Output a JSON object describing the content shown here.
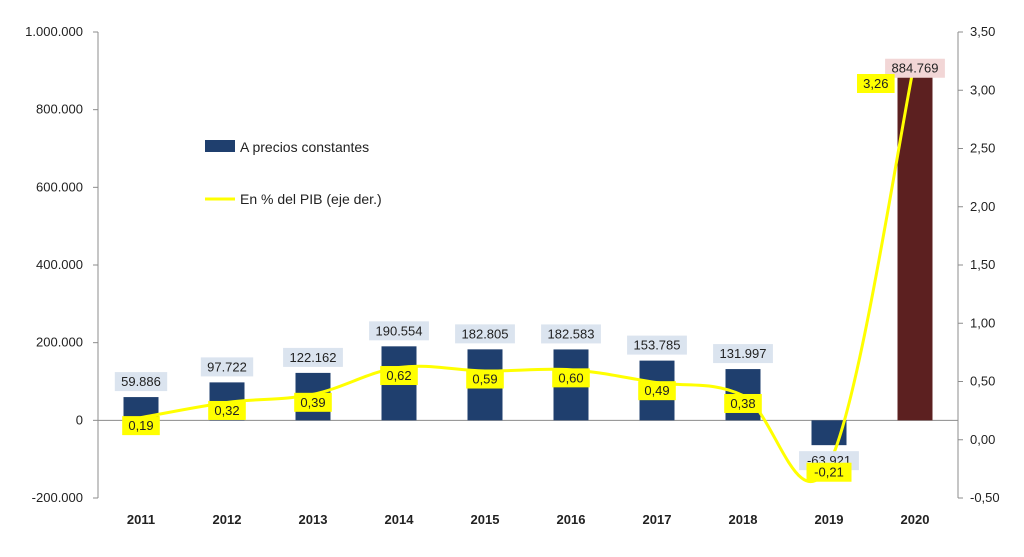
{
  "chart_data": {
    "type": "bar",
    "categories": [
      "2011",
      "2012",
      "2013",
      "2014",
      "2015",
      "2016",
      "2017",
      "2018",
      "2019",
      "2020"
    ],
    "series": [
      {
        "name": "A precios constantes",
        "type": "bar",
        "axis": "left",
        "values": [
          59886,
          97722,
          122162,
          190554,
          182805,
          182583,
          153785,
          131997,
          -63921,
          884769
        ],
        "labels": [
          "59.886",
          "97.722",
          "122.162",
          "190.554",
          "182.805",
          "182.583",
          "153.785",
          "131.997",
          "-63.921",
          "884.769"
        ],
        "color": "#1f3f6e",
        "highlight_color": "#5c2020",
        "label_bg": "#dbe4ef",
        "highlight_label_bg": "#f2d6d6"
      },
      {
        "name": "En % del PIB (eje der.)",
        "type": "line",
        "axis": "right",
        "values": [
          0.19,
          0.32,
          0.39,
          0.62,
          0.59,
          0.6,
          0.49,
          0.38,
          -0.21,
          3.26
        ],
        "labels": [
          "0,19",
          "0,32",
          "0,39",
          "0,62",
          "0,59",
          "0,60",
          "0,49",
          "0,38",
          "-0,21",
          "3,26"
        ],
        "color": "#ffff00",
        "label_bg": "#ffff00"
      }
    ],
    "y_left": {
      "range": [
        -200000,
        1000000
      ],
      "ticks": [
        -200000,
        0,
        200000,
        400000,
        600000,
        800000,
        1000000
      ],
      "tick_labels": [
        "-200.000",
        "0",
        "200.000",
        "400.000",
        "600.000",
        "800.000",
        "1.000.000"
      ]
    },
    "y_right": {
      "range": [
        -0.5,
        3.5
      ],
      "ticks": [
        -0.5,
        0,
        0.5,
        1,
        1.5,
        2,
        2.5,
        3,
        3.5
      ],
      "tick_labels": [
        "-0,50",
        "0,00",
        "0,50",
        "1,00",
        "1,50",
        "2,00",
        "2,50",
        "3,00",
        "3,50"
      ]
    },
    "legend": {
      "position": "top-left",
      "items": [
        "A precios constantes",
        "En % del PIB (eje der.)"
      ]
    },
    "grid": false,
    "title": "",
    "xlabel": "",
    "ylabel": ""
  }
}
